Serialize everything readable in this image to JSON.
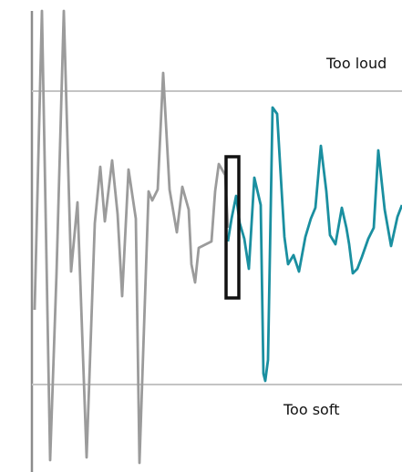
{
  "meter": {
    "too_loud_label": "Too loud",
    "too_soft_label": "Too soft",
    "history_color": "#9b9b9b",
    "live_color": "#1a8fa0",
    "threshold_color": "#c4c4c4",
    "axis_color": "#8c8c8c",
    "cursor_color": "#111111"
  }
}
